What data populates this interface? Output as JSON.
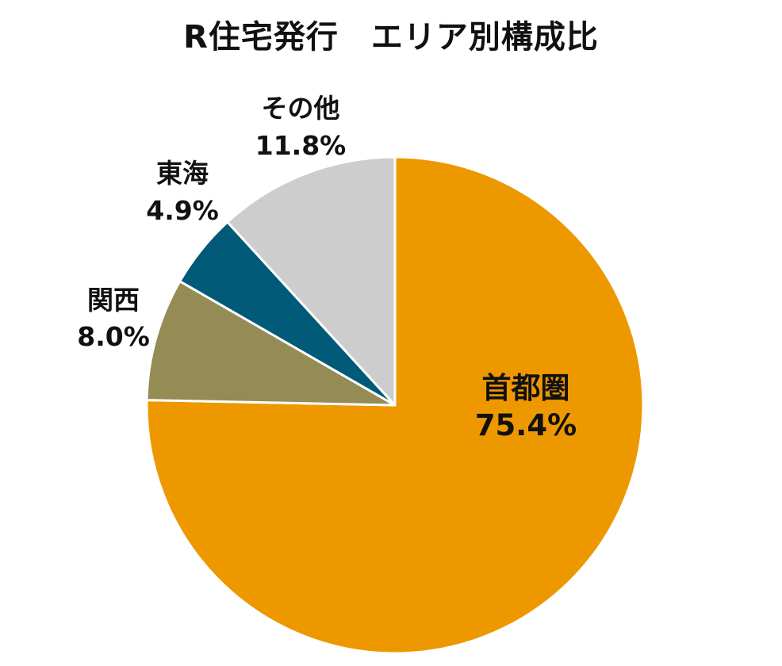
{
  "chart_data": {
    "type": "pie",
    "title": "R住宅発行　エリア別構成比",
    "start": "12 o'clock",
    "direction": "clockwise",
    "slices": [
      {
        "name": "首都圏",
        "value": 75.4,
        "label": "75.4%",
        "color": "#EE9800"
      },
      {
        "name": "関西",
        "value": 8.0,
        "label": "8.0%",
        "color": "#958B55"
      },
      {
        "name": "東海",
        "value": 4.9,
        "label": "4.9%",
        "color": "#005A78"
      },
      {
        "name": "その他",
        "value": 11.8,
        "label": "11.8%",
        "color": "#CDCDCD"
      }
    ]
  }
}
